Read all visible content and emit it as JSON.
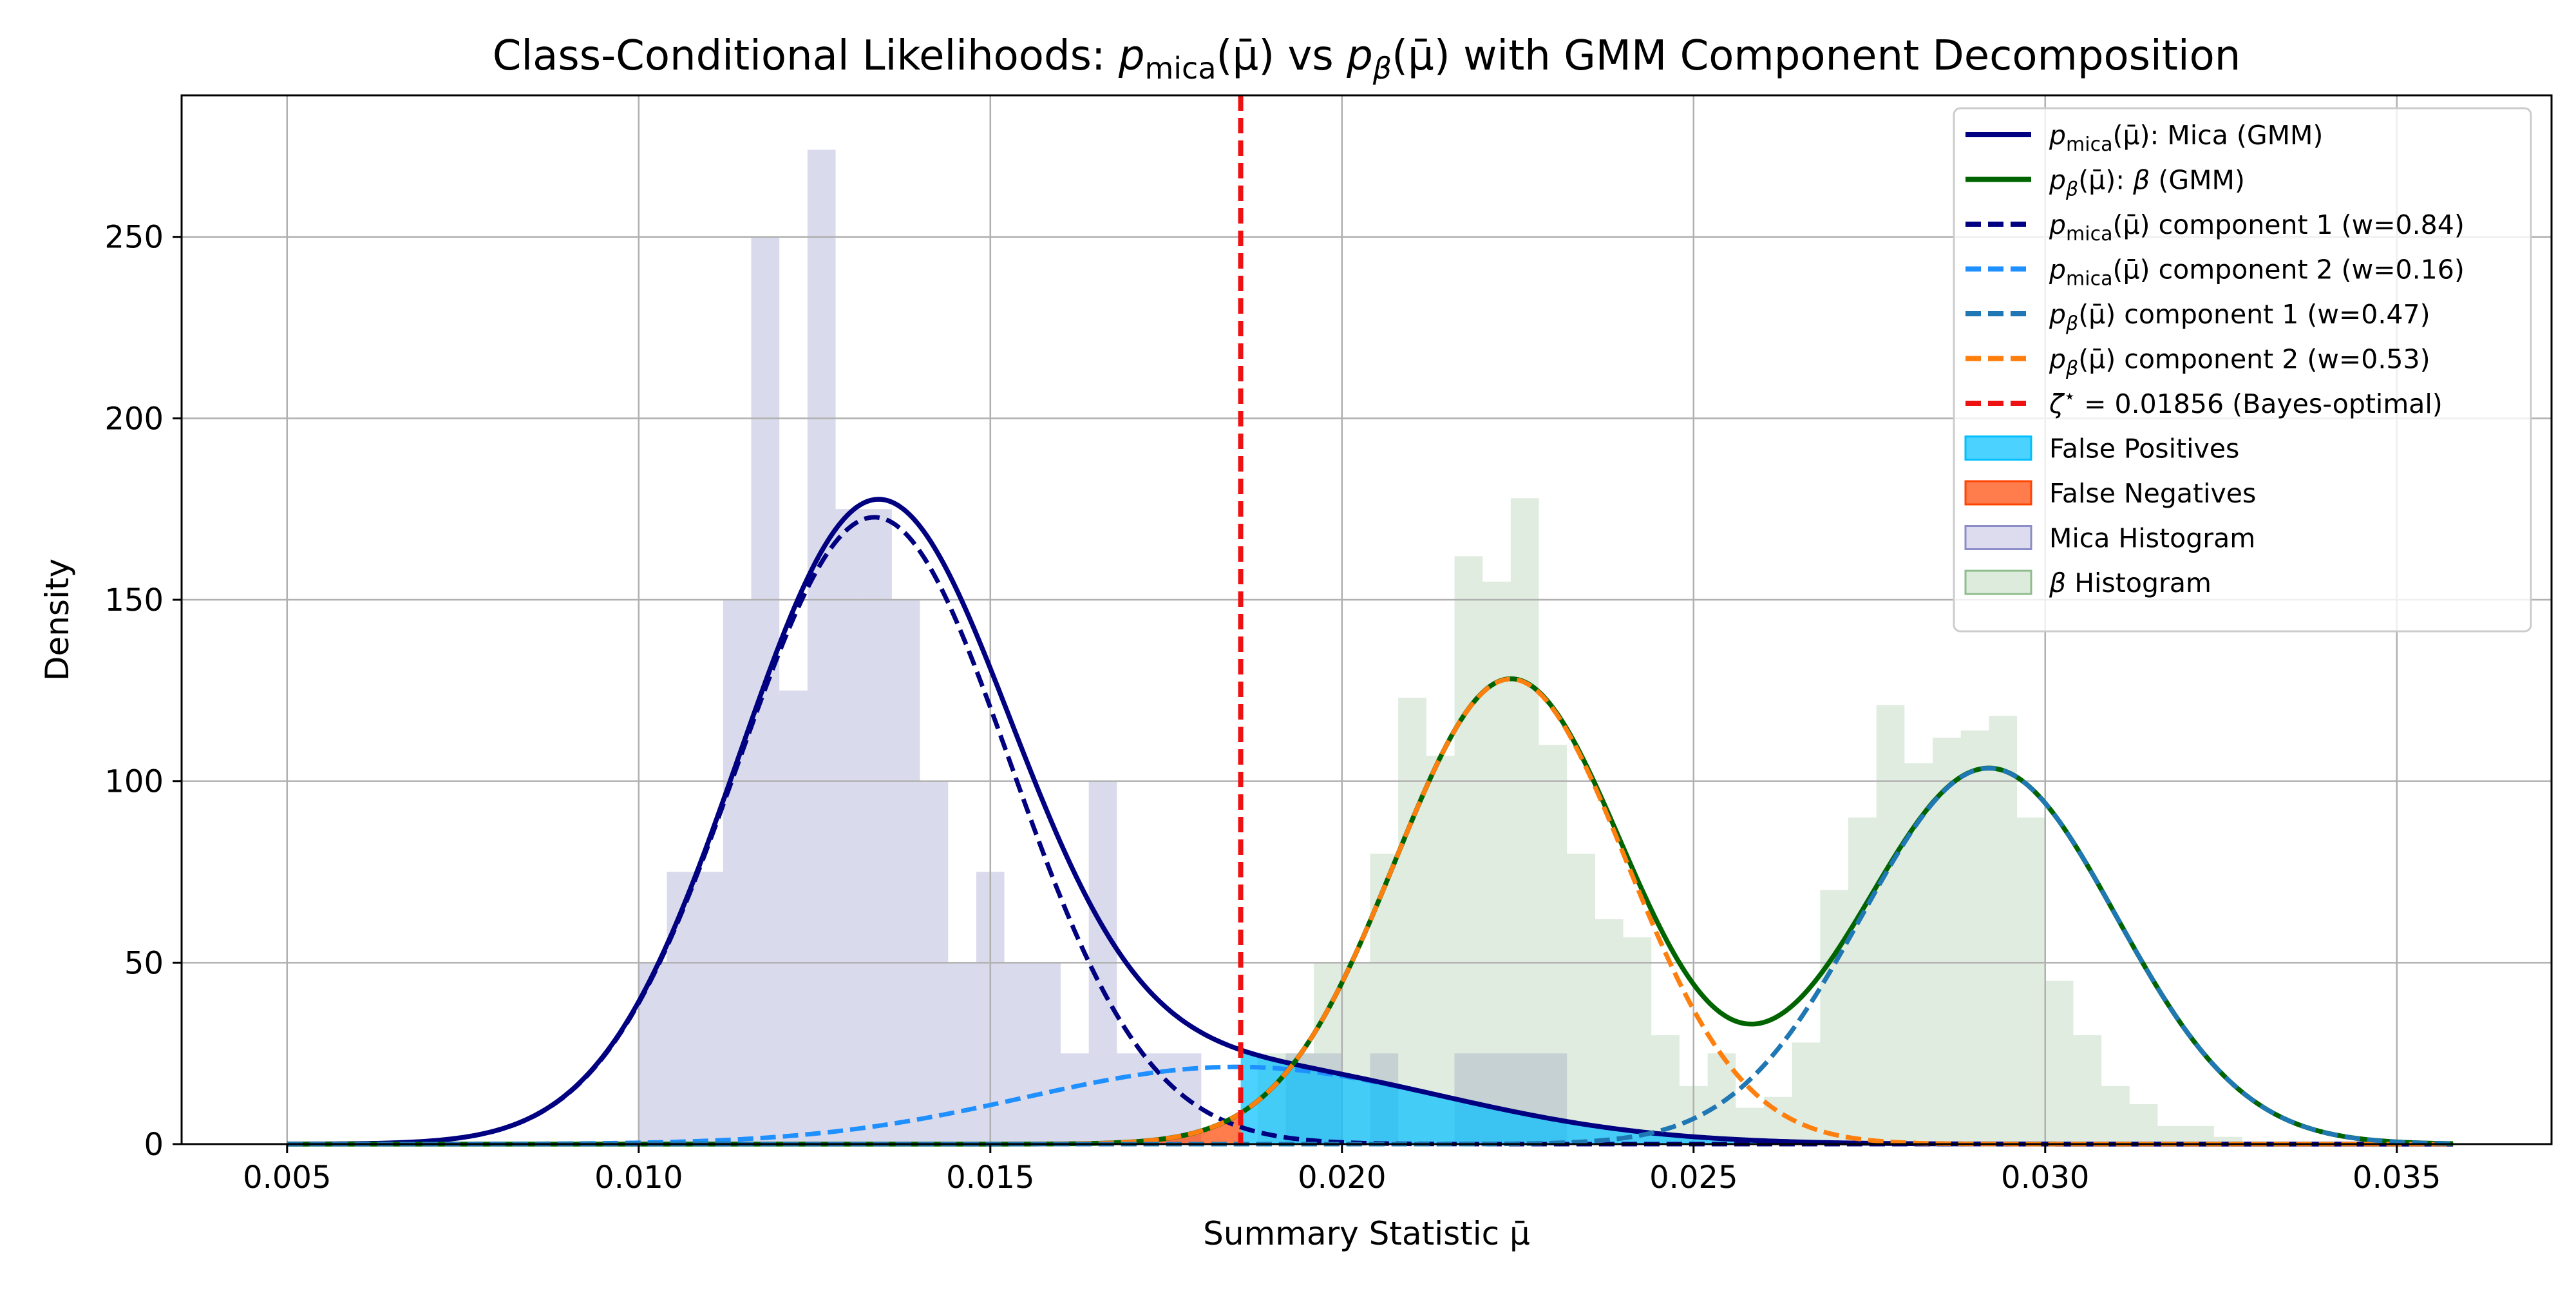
{
  "chart_data": {
    "type": "area",
    "title": "Class-Conditional Likelihoods: p_mica(μ̄) vs p_β(μ̄) with GMM Component Decomposition",
    "title_parts": {
      "prefix": "Class-Conditional Likelihoods: ",
      "p": "p",
      "mica_sub": "mica",
      "beta_sub": "β",
      "arg": "(μ̄)",
      "vs": " vs ",
      "suffix": " with GMM Component Decomposition"
    },
    "xlabel": "Summary Statistic μ̄",
    "ylabel": "Density",
    "xlim": [
      0.0035,
      0.0372
    ],
    "ylim": [
      0,
      289
    ],
    "x_ticks": [
      0.005,
      0.01,
      0.015,
      0.02,
      0.025,
      0.03,
      0.035
    ],
    "x_tick_labels": [
      "0.005",
      "0.010",
      "0.015",
      "0.020",
      "0.025",
      "0.030",
      "0.035"
    ],
    "y_ticks": [
      0,
      50,
      100,
      150,
      200,
      250
    ],
    "y_tick_labels": [
      "0",
      "50",
      "100",
      "150",
      "200",
      "250"
    ],
    "grid": true,
    "legend_position": "top-right",
    "threshold": {
      "value": 0.01856,
      "color": "#ee1111"
    },
    "curve_range": [
      0.005,
      0.0358
    ],
    "colors": {
      "mica_total": "#000080",
      "beta_total": "#006400",
      "mica_c1": "#000080",
      "mica_c2": "#1e90ff",
      "beta_c1": "#1f77b4",
      "beta_c2": "#ff7f0e",
      "false_positive": "#00bfff",
      "false_negative": "#ff4500",
      "mica_hist": "#8c8cc8",
      "beta_hist": "#8fbc8f"
    },
    "series": [
      {
        "key": "mica_total",
        "style": "solid",
        "components": [
          [
            0.84,
            0.01335,
            0.00194
          ],
          [
            0.16,
            0.0185,
            0.003
          ]
        ]
      },
      {
        "key": "beta_total",
        "style": "solid",
        "components": [
          [
            0.47,
            0.0292,
            0.00181
          ],
          [
            0.53,
            0.0224,
            0.00165
          ]
        ]
      },
      {
        "key": "mica_c1",
        "style": "dashed",
        "weight": 0.84,
        "mean": 0.01335,
        "sd": 0.00194
      },
      {
        "key": "mica_c2",
        "style": "dashed",
        "weight": 0.16,
        "mean": 0.0185,
        "sd": 0.003
      },
      {
        "key": "beta_c1",
        "style": "dashed",
        "weight": 0.47,
        "mean": 0.0292,
        "sd": 0.00181
      },
      {
        "key": "beta_c2",
        "style": "dashed",
        "weight": 0.53,
        "mean": 0.0224,
        "sd": 0.00165
      }
    ],
    "histograms": {
      "mica": {
        "edges": [
          0.01,
          0.0104,
          0.0108,
          0.0112,
          0.0116,
          0.012,
          0.0124,
          0.0128,
          0.0132,
          0.0136,
          0.014,
          0.0144,
          0.0148,
          0.0152,
          0.0156,
          0.016,
          0.0164,
          0.0168,
          0.0172,
          0.0176,
          0.018,
          0.0184,
          0.0188,
          0.0192,
          0.0196,
          0.02,
          0.0204,
          0.0208,
          0.0212,
          0.0216,
          0.022,
          0.0224,
          0.0228,
          0.0232
        ],
        "values": [
          50,
          75,
          75,
          150,
          250,
          125,
          274,
          175,
          175,
          150,
          100,
          50,
          75,
          50,
          50,
          25,
          100,
          25,
          25,
          25,
          0,
          0,
          0,
          25,
          25,
          0,
          25,
          0,
          0,
          25,
          25,
          25,
          25
        ]
      },
      "beta": {
        "edges": [
          0.0188,
          0.0196,
          0.02,
          0.0204,
          0.0208,
          0.0212,
          0.0216,
          0.022,
          0.0224,
          0.0228,
          0.0232,
          0.0236,
          0.024,
          0.0244,
          0.0248,
          0.0252,
          0.0256,
          0.026,
          0.0264,
          0.0268,
          0.0272,
          0.0276,
          0.028,
          0.0284,
          0.0288,
          0.0292,
          0.0296,
          0.03,
          0.0304,
          0.0308,
          0.0312,
          0.0316,
          0.032,
          0.0324,
          0.0328
        ],
        "values": [
          25,
          50,
          50,
          80,
          123,
          107,
          162,
          155,
          178,
          110,
          80,
          62,
          57,
          30,
          16,
          25,
          10,
          13,
          28,
          70,
          90,
          121,
          105,
          112,
          114,
          118,
          90,
          45,
          30,
          16,
          11,
          5,
          5,
          2
        ]
      }
    },
    "legend": [
      {
        "key": "mica_total",
        "kind": "line",
        "style": "solid",
        "math": {
          "p": "p",
          "sub": "mica",
          "arg": "(μ̄)"
        },
        "text": ": Mica (GMM)"
      },
      {
        "key": "beta_total",
        "kind": "line",
        "style": "solid",
        "math": {
          "p": "p",
          "sub": "β",
          "arg": "(μ̄)"
        },
        "pre": ": ",
        "italic": "β",
        "text": " (GMM)"
      },
      {
        "key": "mica_c1",
        "kind": "line",
        "style": "dashed",
        "math": {
          "p": "p",
          "sub": "mica",
          "arg": "(μ̄)"
        },
        "text": " component 1 (w=0.84)"
      },
      {
        "key": "mica_c2",
        "kind": "line",
        "style": "dashed",
        "math": {
          "p": "p",
          "sub": "mica",
          "arg": "(μ̄)"
        },
        "text": " component 2 (w=0.16)"
      },
      {
        "key": "beta_c1",
        "kind": "line",
        "style": "dashed",
        "math": {
          "p": "p",
          "sub": "β",
          "arg": "(μ̄)"
        },
        "text": " component 1 (w=0.47)"
      },
      {
        "key": "beta_c2",
        "kind": "line",
        "style": "dashed",
        "math": {
          "p": "p",
          "sub": "β",
          "arg": "(μ̄)"
        },
        "text": " component 2 (w=0.53)"
      },
      {
        "key": "threshold",
        "kind": "line",
        "style": "dashed",
        "italic": "ζ",
        "sup": "⋆",
        "text": " = 0.01856 (Bayes-optimal)"
      },
      {
        "key": "false_positive",
        "kind": "patch",
        "text": "False Positives"
      },
      {
        "key": "false_negative",
        "kind": "patch",
        "text": "False Negatives"
      },
      {
        "key": "mica_hist",
        "kind": "patch",
        "text": "Mica Histogram"
      },
      {
        "key": "beta_hist",
        "kind": "patch",
        "italic": "β",
        "text": " Histogram"
      }
    ]
  }
}
